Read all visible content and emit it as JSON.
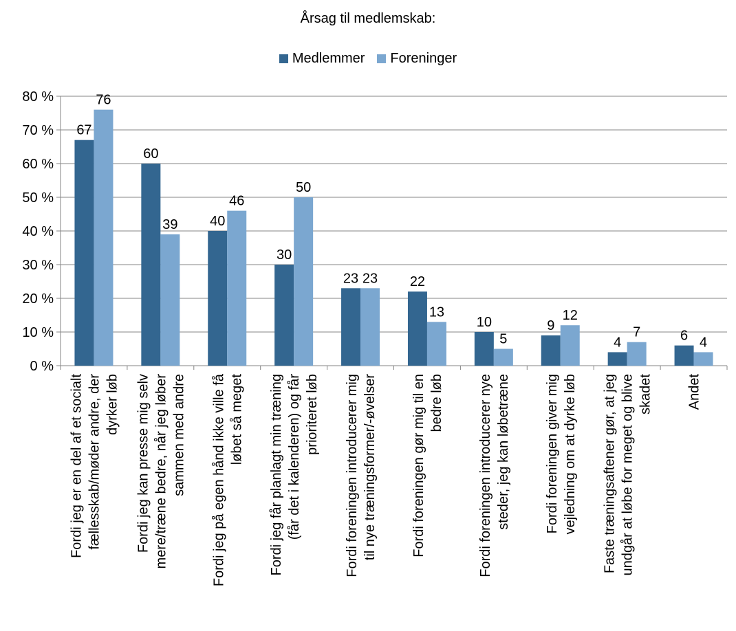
{
  "chart_data": {
    "type": "bar",
    "title": "Årsag til medlemskab:",
    "xlabel": "",
    "ylabel": "",
    "ylim": [
      0,
      80
    ],
    "yticks": [
      0,
      10,
      20,
      30,
      40,
      50,
      60,
      70,
      80
    ],
    "ytick_labels": [
      "0 %",
      "10 %",
      "20 %",
      "30 %",
      "40 %",
      "50 %",
      "60 %",
      "70 %",
      "80 %"
    ],
    "grid": true,
    "legend_position": "top-center",
    "categories": [
      "Fordi jeg er en del af et socialt fællesskab/møder andre, der dyrker løb",
      "Fordi jeg kan presse mig selv mere/træne bedre, når jeg løber sammen med andre",
      "Fordi jeg på egen hånd ikke ville få løbet så meget",
      "Fordi jeg får planlagt min træning (får det i kalenderen) og får prioriteret løb",
      "Fordi foreningen introducerer mig til nye træningsformer/-øvelser",
      "Fordi foreningen gør mig til en bedre løb",
      "Fordi foreningen introducerer nye steder, jeg kan løbetræne",
      "Fordi foreningen giver mig vejledning om at dyrke løb",
      "Faste træningsaftener gør, at jeg undgår at løbe for meget og blive skadet",
      "Andet"
    ],
    "category_lines": [
      [
        "Fordi jeg er en del af et socialt",
        "fællesskab/møder andre, der",
        "dyrker løb"
      ],
      [
        "Fordi jeg kan presse mig selv",
        "mere/træne bedre, når jeg løber",
        "sammen med andre"
      ],
      [
        "Fordi jeg på egen hånd ikke ville få",
        "løbet så meget"
      ],
      [
        "Fordi jeg får planlagt min træning",
        "(får det i kalenderen) og får",
        "prioriteret løb"
      ],
      [
        "Fordi foreningen introducerer mig",
        "til nye træningsformer/-øvelser"
      ],
      [
        "Fordi foreningen gør mig til en",
        "bedre løb"
      ],
      [
        "Fordi foreningen introducerer nye",
        "steder, jeg kan løbetræne"
      ],
      [
        "Fordi foreningen giver mig",
        "vejledning om at dyrke løb"
      ],
      [
        "Faste træningsaftener gør, at jeg",
        "undgår at løbe for meget og blive",
        "skadet"
      ],
      [
        "Andet"
      ]
    ],
    "series": [
      {
        "name": "Medlemmer",
        "color": "#336690",
        "values": [
          67,
          60,
          40,
          30,
          23,
          22,
          10,
          9,
          4,
          6
        ]
      },
      {
        "name": "Foreninger",
        "color": "#7BA7D0",
        "values": [
          76,
          39,
          46,
          50,
          23,
          13,
          5,
          12,
          7,
          4
        ]
      }
    ]
  }
}
